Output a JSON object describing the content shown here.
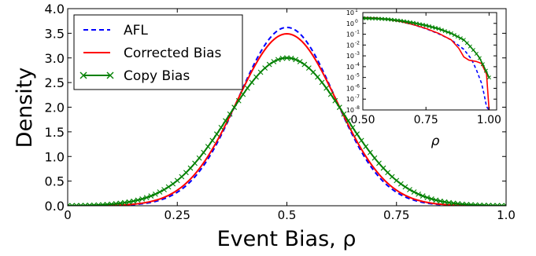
{
  "chart_data": [
    {
      "type": "line",
      "title": "",
      "xlabel": "Event Bias, ρ",
      "ylabel": "Density",
      "xlim": [
        0,
        1
      ],
      "ylim": [
        0,
        4
      ],
      "xticks": [
        0,
        0.25,
        0.5,
        0.75,
        1
      ],
      "xtick_labels": [
        "0",
        "0.25",
        "0.5",
        "0.75",
        "1.0"
      ],
      "yticks": [
        0,
        0.5,
        1,
        1.5,
        2,
        2.5,
        3,
        3.5,
        4
      ],
      "ytick_labels": [
        "0.0",
        "0.5",
        "1.0",
        "1.5",
        "2.0",
        "2.5",
        "3.0",
        "3.5",
        "4.0"
      ],
      "grid": false,
      "legend_position": "top-left",
      "series": [
        {
          "name": "AFL",
          "color": "#0000ff",
          "style": "dashed",
          "x": [
            0,
            0.1,
            0.15,
            0.2,
            0.25,
            0.3,
            0.35,
            0.4,
            0.45,
            0.5,
            0.55,
            0.6,
            0.65,
            0.7,
            0.75,
            0.8,
            0.85,
            0.9,
            1
          ],
          "y": [
            0,
            0.005,
            0.03,
            0.11,
            0.32,
            0.75,
            1.45,
            2.35,
            3.2,
            3.62,
            3.2,
            2.35,
            1.45,
            0.75,
            0.32,
            0.11,
            0.03,
            0.005,
            0
          ]
        },
        {
          "name": "Corrected Bias",
          "color": "#ff0000",
          "style": "solid",
          "x": [
            0,
            0.1,
            0.15,
            0.2,
            0.25,
            0.3,
            0.35,
            0.4,
            0.45,
            0.5,
            0.55,
            0.6,
            0.65,
            0.7,
            0.75,
            0.8,
            0.85,
            0.9,
            1
          ],
          "y": [
            0,
            0.005,
            0.03,
            0.12,
            0.34,
            0.77,
            1.48,
            2.35,
            3.12,
            3.49,
            3.12,
            2.35,
            1.48,
            0.77,
            0.34,
            0.12,
            0.03,
            0.005,
            0
          ]
        },
        {
          "name": "Copy Bias",
          "color": "#008000",
          "style": "solid",
          "marker": "x",
          "x": [
            0,
            0.05,
            0.1,
            0.15,
            0.2,
            0.25,
            0.3,
            0.35,
            0.4,
            0.45,
            0.5,
            0.55,
            0.6,
            0.65,
            0.7,
            0.75,
            0.8,
            0.85,
            0.9,
            0.95,
            1
          ],
          "y": [
            0,
            0.004,
            0.03,
            0.12,
            0.32,
            0.64,
            1.12,
            1.75,
            2.38,
            2.82,
            3.0,
            2.82,
            2.38,
            1.75,
            1.12,
            0.64,
            0.32,
            0.12,
            0.03,
            0.004,
            0
          ]
        }
      ]
    },
    {
      "type": "line",
      "title": "",
      "xlabel": "ρ",
      "ylabel": "",
      "xlim": [
        0.5,
        1.03
      ],
      "ylim": [
        1e-08,
        10
      ],
      "yscale": "log",
      "xticks": [
        0.5,
        0.75,
        1.0
      ],
      "xtick_labels": [
        "0.50",
        "0.75",
        "1.00"
      ],
      "yticks_exp": [
        1,
        0,
        -1,
        -2,
        -3,
        -4,
        -5,
        -6,
        -7,
        -8
      ],
      "ytick_labels": [
        "10",
        "10",
        "10",
        "10",
        "10",
        "10",
        "10",
        "10",
        "10",
        "10"
      ],
      "ytick_exponents": [
        "1",
        "0",
        "-1",
        "-2",
        "-3",
        "-4",
        "-5",
        "-6",
        "-7",
        "-8"
      ],
      "grid": false,
      "series": [
        {
          "name": "AFL",
          "color": "#0000ff",
          "style": "dashed",
          "x": [
            0.5,
            0.55,
            0.6,
            0.65,
            0.7,
            0.75,
            0.8,
            0.85,
            0.9,
            0.93,
            0.95,
            0.97,
            0.98,
            0.99,
            1.0
          ],
          "y": [
            3.6,
            3.2,
            2.35,
            1.45,
            0.75,
            0.32,
            0.11,
            0.03,
            0.004,
            0.0005,
            5e-05,
            3e-06,
            3e-07,
            2e-08,
            1e-08
          ]
        },
        {
          "name": "Corrected Bias",
          "color": "#ff0000",
          "style": "solid",
          "x": [
            0.5,
            0.55,
            0.6,
            0.65,
            0.7,
            0.75,
            0.8,
            0.85,
            0.88,
            0.9,
            0.92,
            0.95,
            0.97,
            0.99,
            1.0
          ],
          "y": [
            3.5,
            3.1,
            2.35,
            1.48,
            0.77,
            0.34,
            0.12,
            0.03,
            0.005,
            0.0008,
            0.0004,
            0.0003,
            0.0002,
            2e-05,
            1e-08
          ]
        },
        {
          "name": "Copy Bias",
          "color": "#008000",
          "style": "solid",
          "marker": "x",
          "x": [
            0.5,
            0.55,
            0.6,
            0.65,
            0.7,
            0.75,
            0.8,
            0.85,
            0.9,
            0.92,
            0.94,
            0.96,
            0.98,
            1.0
          ],
          "y": [
            3.0,
            2.8,
            2.38,
            1.75,
            1.12,
            0.64,
            0.32,
            0.12,
            0.03,
            0.01,
            0.003,
            0.0008,
            0.0001,
            1e-05
          ]
        }
      ]
    }
  ]
}
